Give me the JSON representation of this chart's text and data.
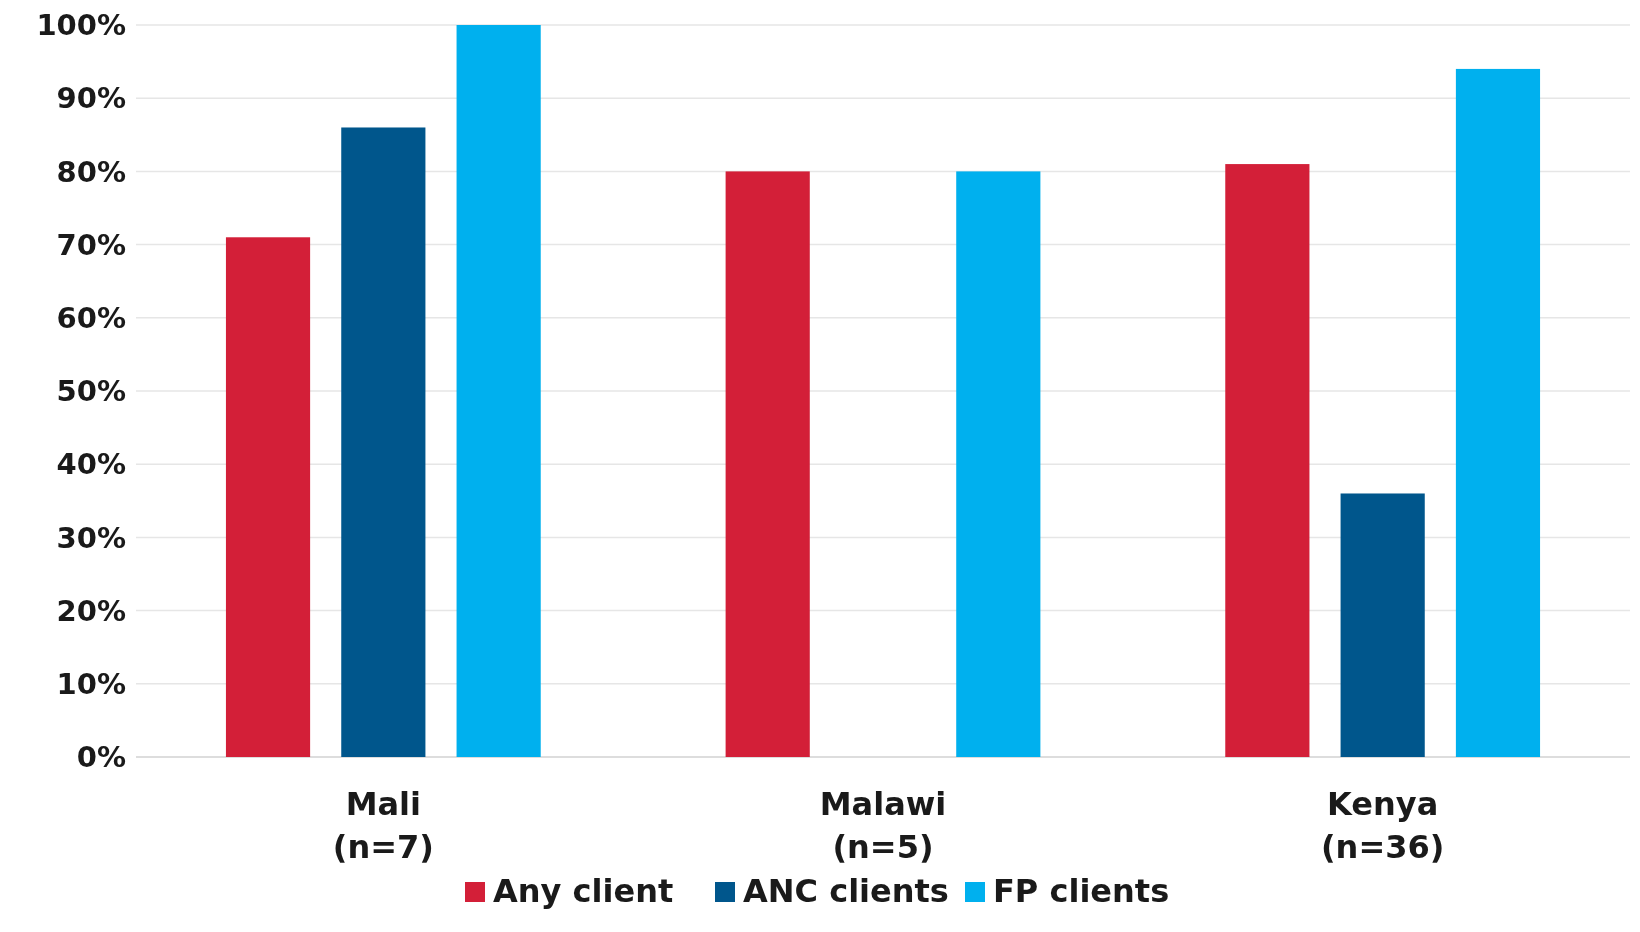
{
  "chart_data": {
    "type": "bar",
    "categories": [
      "Mali\n(n=7)",
      "Malawi\n(n=5)",
      "Kenya\n(n=36)"
    ],
    "series": [
      {
        "name": "Any client",
        "color": "#d31f38",
        "values": [
          71,
          80,
          81
        ]
      },
      {
        "name": "ANC clients",
        "color": "#00568c",
        "values": [
          86,
          null,
          36
        ]
      },
      {
        "name": "FP clients",
        "color": "#00b0ee",
        "values": [
          100,
          80,
          94
        ]
      }
    ],
    "ylim": [
      0,
      100
    ],
    "yticks": [
      {
        "value": 0,
        "label": "0%"
      },
      {
        "value": 10,
        "label": "10%"
      },
      {
        "value": 20,
        "label": "20%"
      },
      {
        "value": 30,
        "label": "30%"
      },
      {
        "value": 40,
        "label": "40%"
      },
      {
        "value": 50,
        "label": "50%"
      },
      {
        "value": 60,
        "label": "60%"
      },
      {
        "value": 70,
        "label": "70%"
      },
      {
        "value": 80,
        "label": "80%"
      },
      {
        "value": 90,
        "label": "90%"
      },
      {
        "value": 100,
        "label": "100%"
      }
    ],
    "grid": "y",
    "legend": "bottom"
  }
}
